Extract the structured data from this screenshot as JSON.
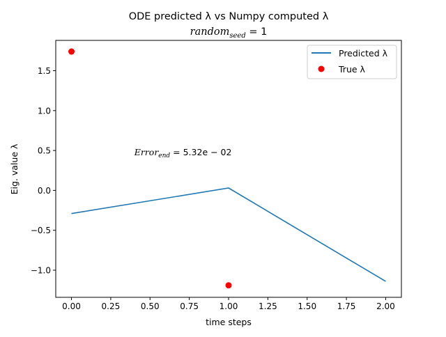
{
  "chart_data": {
    "type": "line",
    "title_line1": "ODE predicted λ vs Numpy computed λ",
    "title_line2_main": "random",
    "title_line2_sub": "seed",
    "title_line2_rest": " = 1",
    "xlabel": "time steps",
    "ylabel": "Eig. value λ",
    "xlim": [
      -0.1,
      2.1
    ],
    "ylim": [
      -1.34,
      1.88
    ],
    "xticks": [
      0.0,
      0.25,
      0.5,
      0.75,
      1.0,
      1.25,
      1.5,
      1.75,
      2.0
    ],
    "xtick_labels": [
      "0.00",
      "0.25",
      "0.50",
      "0.75",
      "1.00",
      "1.25",
      "1.50",
      "1.75",
      "2.00"
    ],
    "yticks": [
      -1.0,
      -0.5,
      0.0,
      0.5,
      1.0,
      1.5
    ],
    "ytick_labels": [
      "−1.0",
      "−0.5",
      "0.0",
      "0.5",
      "1.0",
      "1.5"
    ],
    "grid": false,
    "legend_position": "top-right",
    "annotation": {
      "main": "Error",
      "sub": "end",
      "rest": " = 5.32e − 02",
      "x": 0.4,
      "y": 0.44
    },
    "series": [
      {
        "name": "Predicted λ",
        "kind": "line",
        "color": "#1f77b4",
        "x": [
          0,
          1,
          2
        ],
        "y": [
          -0.29,
          0.03,
          -1.14
        ]
      },
      {
        "name": "True λ",
        "kind": "scatter",
        "color": "#ff0000",
        "x": [
          0,
          1
        ],
        "y": [
          1.74,
          -1.19
        ]
      }
    ]
  }
}
